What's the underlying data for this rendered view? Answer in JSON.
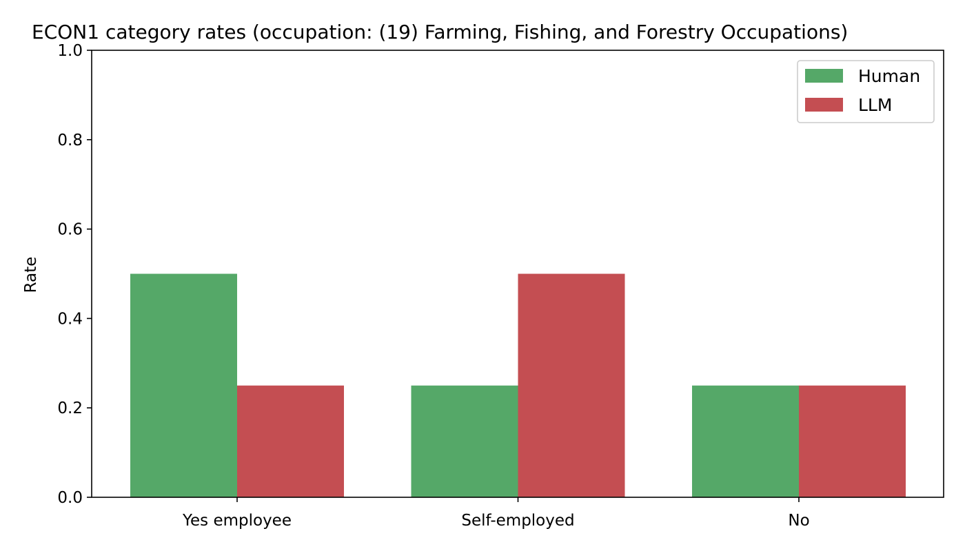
{
  "chart_data": {
    "type": "bar",
    "title": "ECON1 category rates (occupation: (19) Farming, Fishing, and Forestry Occupations)",
    "xlabel": "",
    "ylabel": "Rate",
    "categories": [
      "Yes employee",
      "Self-employed",
      "No"
    ],
    "series": [
      {
        "name": "Human",
        "values": [
          0.5,
          0.25,
          0.25
        ],
        "color": "#55a868"
      },
      {
        "name": "LLM",
        "values": [
          0.25,
          0.5,
          0.25
        ],
        "color": "#c44e52"
      }
    ],
    "ylim": [
      0,
      1.0
    ],
    "yticks": [
      "0.0",
      "0.2",
      "0.4",
      "0.6",
      "0.8",
      "1.0"
    ],
    "grid": false,
    "legend_position": "top-right"
  }
}
